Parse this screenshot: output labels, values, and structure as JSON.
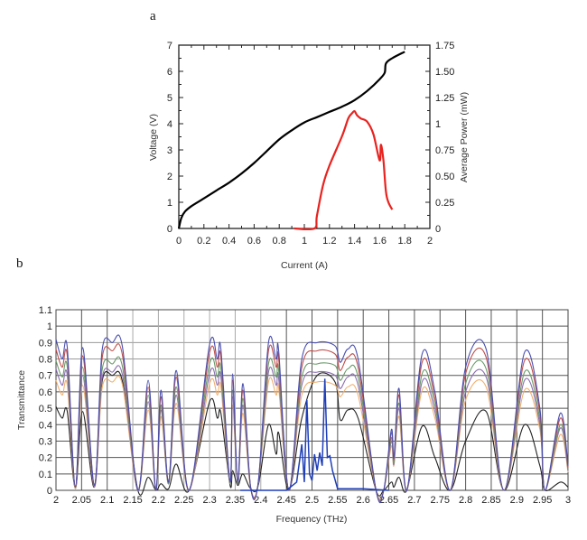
{
  "chart_data": [
    {
      "panel_label": "a",
      "type": "line",
      "xlabel": "Current (A)",
      "ylabel": "Voltage (V)",
      "y2label": "Average Power (mW)",
      "xlim": [
        0,
        2
      ],
      "ylim": [
        0,
        7
      ],
      "y2lim": [
        0,
        1.75
      ],
      "xticks": [
        "0",
        "0.2",
        "0.4",
        "0.6",
        "0.8",
        "1",
        "1.2",
        "1.4",
        "1.6",
        "1.8",
        "2"
      ],
      "yticks": [
        "0",
        "1",
        "2",
        "3",
        "4",
        "5",
        "6",
        "7"
      ],
      "y2ticks": [
        "0",
        "0.25",
        "0.50",
        "0.75",
        "1",
        "1.25",
        "1.50",
        "1.75"
      ],
      "grid": false,
      "series": [
        {
          "axis": "left",
          "color": "#000000",
          "x": [
            0,
            0.02,
            0.05,
            0.1,
            0.2,
            0.3,
            0.4,
            0.5,
            0.6,
            0.7,
            0.8,
            0.9,
            1.0,
            1.1,
            1.2,
            1.3,
            1.4,
            1.5,
            1.6,
            1.64,
            1.65,
            1.7,
            1.8
          ],
          "y": [
            0,
            0.4,
            0.65,
            0.85,
            1.15,
            1.45,
            1.75,
            2.1,
            2.5,
            2.95,
            3.4,
            3.75,
            4.05,
            4.25,
            4.45,
            4.65,
            4.9,
            5.25,
            5.7,
            5.95,
            6.3,
            6.5,
            6.75
          ]
        },
        {
          "axis": "right",
          "color": "#e8231f",
          "x": [
            0.92,
            1.08,
            1.1,
            1.15,
            1.2,
            1.3,
            1.35,
            1.38,
            1.4,
            1.42,
            1.45,
            1.5,
            1.55,
            1.6,
            1.61,
            1.63,
            1.65,
            1.67,
            1.7
          ],
          "y": [
            0,
            0,
            0.12,
            0.42,
            0.6,
            0.88,
            1.05,
            1.1,
            1.12,
            1.08,
            1.05,
            1.02,
            0.9,
            0.65,
            0.8,
            0.65,
            0.35,
            0.25,
            0.18
          ]
        }
      ]
    },
    {
      "panel_label": "b",
      "type": "line",
      "xlabel": "Frequency (THz)",
      "ylabel": "Transmittance",
      "xlim": [
        2,
        3
      ],
      "ylim": [
        0,
        1.1
      ],
      "xticks": [
        "2",
        "2.05",
        "2.1",
        "2.15",
        "2.2",
        "2.25",
        "2.3",
        "2.35",
        "2.4",
        "2.45",
        "2.5",
        "2.55",
        "2.6",
        "2.65",
        "2.7",
        "2.75",
        "2.8",
        "2.85",
        "2.9",
        "2.95",
        "3"
      ],
      "yticks": [
        "0",
        "0.1",
        "0.2",
        "0.3",
        "0.4",
        "0.5",
        "0.6",
        "0.7",
        "0.8",
        "0.9",
        "1",
        "1.1"
      ],
      "grid": true,
      "x": [
        2.0,
        2.012,
        2.022,
        2.038,
        2.052,
        2.075,
        2.09,
        2.11,
        2.13,
        2.16,
        2.18,
        2.195,
        2.205,
        2.22,
        2.235,
        2.26,
        2.3,
        2.315,
        2.322,
        2.34,
        2.345,
        2.355,
        2.365,
        2.38,
        2.395,
        2.415,
        2.43,
        2.435,
        2.455,
        2.48,
        2.51,
        2.545,
        2.555,
        2.57,
        2.59,
        2.625,
        2.64,
        2.655,
        2.66,
        2.67,
        2.685,
        2.715,
        2.74,
        2.77,
        2.8,
        2.84,
        2.875,
        2.915,
        2.945,
        2.955,
        2.985,
        3.0
      ],
      "series": [
        {
          "color": "#4a4fb0",
          "values": [
            0.92,
            0.8,
            0.87,
            0.02,
            0.87,
            0.03,
            0.85,
            0.9,
            0.87,
            0.0,
            0.67,
            0.0,
            0.61,
            0.05,
            0.73,
            0.0,
            0.89,
            0.8,
            0.86,
            0.05,
            0.71,
            0.05,
            0.65,
            0.02,
            0.05,
            0.9,
            0.8,
            0.85,
            0.0,
            0.8,
            0.9,
            0.88,
            0.78,
            0.86,
            0.8,
            0.0,
            0.0,
            0.37,
            0.2,
            0.62,
            0.0,
            0.83,
            0.6,
            0.0,
            0.75,
            0.86,
            0.0,
            0.84,
            0.5,
            0.0,
            0.47,
            0.15
          ]
        },
        {
          "color": "#c0504d",
          "values": [
            0.86,
            0.75,
            0.82,
            0.02,
            0.82,
            0.03,
            0.8,
            0.85,
            0.82,
            0,
            0.63,
            0,
            0.57,
            0.05,
            0.69,
            0,
            0.84,
            0.75,
            0.81,
            0.05,
            0.67,
            0.05,
            0.61,
            0.02,
            0.05,
            0.85,
            0.75,
            0.8,
            0,
            0.75,
            0.85,
            0.83,
            0.73,
            0.81,
            0.75,
            0,
            0,
            0.35,
            0.19,
            0.58,
            0,
            0.78,
            0.56,
            0,
            0.71,
            0.81,
            0,
            0.79,
            0.47,
            0,
            0.44,
            0.14
          ]
        },
        {
          "color": "#6a9a6a",
          "values": [
            0.79,
            0.69,
            0.75,
            0.02,
            0.75,
            0.03,
            0.73,
            0.77,
            0.75,
            0,
            0.58,
            0,
            0.52,
            0.04,
            0.63,
            0,
            0.77,
            0.69,
            0.74,
            0.04,
            0.61,
            0.04,
            0.56,
            0.02,
            0.04,
            0.77,
            0.69,
            0.73,
            0,
            0.69,
            0.77,
            0.76,
            0.67,
            0.74,
            0.69,
            0,
            0,
            0.32,
            0.17,
            0.53,
            0,
            0.71,
            0.52,
            0,
            0.65,
            0.74,
            0,
            0.72,
            0.43,
            0,
            0.4,
            0.13
          ]
        },
        {
          "color": "#8a6fb0",
          "values": [
            0.74,
            0.64,
            0.7,
            0.02,
            0.7,
            0.02,
            0.68,
            0.72,
            0.7,
            0,
            0.54,
            0,
            0.49,
            0.04,
            0.58,
            0,
            0.71,
            0.64,
            0.69,
            0.04,
            0.57,
            0.04,
            0.52,
            0.02,
            0.04,
            0.72,
            0.64,
            0.68,
            0,
            0.64,
            0.72,
            0.7,
            0.62,
            0.69,
            0.64,
            0,
            0,
            0.3,
            0.16,
            0.5,
            0,
            0.66,
            0.48,
            0,
            0.6,
            0.69,
            0,
            0.67,
            0.4,
            0,
            0.38,
            0.12
          ]
        },
        {
          "color": "#f0b070",
          "values": [
            0.67,
            0.58,
            0.64,
            0.01,
            0.64,
            0.02,
            0.62,
            0.66,
            0.64,
            0,
            0.49,
            0,
            0.45,
            0.04,
            0.53,
            0,
            0.65,
            0.58,
            0.63,
            0.04,
            0.52,
            0.04,
            0.47,
            0.01,
            0.04,
            0.66,
            0.58,
            0.62,
            0,
            0.58,
            0.66,
            0.64,
            0.57,
            0.63,
            0.58,
            0,
            0,
            0.27,
            0.15,
            0.45,
            0,
            0.61,
            0.44,
            0,
            0.55,
            0.63,
            0,
            0.61,
            0.37,
            0,
            0.34,
            0.11
          ]
        },
        {
          "color": "#222222",
          "values": [
            0.51,
            0.44,
            0.48,
            0.01,
            0.48,
            0.02,
            0.66,
            0.7,
            0.66,
            0,
            0.08,
            0,
            0.04,
            0.01,
            0.16,
            0,
            0.54,
            0.44,
            0.47,
            0.03,
            0.12,
            0.03,
            0.1,
            0.01,
            0.03,
            0.4,
            0.22,
            0.35,
            0,
            0.44,
            0.7,
            0.66,
            0.43,
            0.49,
            0.44,
            0,
            0,
            0.05,
            0.02,
            0.08,
            0,
            0.39,
            0.2,
            0,
            0.3,
            0.48,
            0,
            0.4,
            0.15,
            0,
            0.05,
            0.02
          ]
        }
      ],
      "spectrum": {
        "color": "#1f3fb8",
        "x": [
          2.36,
          2.45,
          2.47,
          2.48,
          2.485,
          2.49,
          2.495,
          2.5,
          2.505,
          2.51,
          2.515,
          2.52,
          2.525,
          2.53,
          2.535,
          2.54,
          2.55,
          2.6,
          2.65
        ],
        "y": [
          0,
          0,
          0.05,
          0.28,
          0.05,
          0.55,
          0.1,
          0.06,
          0.22,
          0.12,
          0.23,
          0.15,
          0.68,
          0.2,
          0.21,
          0.12,
          0.01,
          0.01,
          0
        ]
      }
    }
  ]
}
